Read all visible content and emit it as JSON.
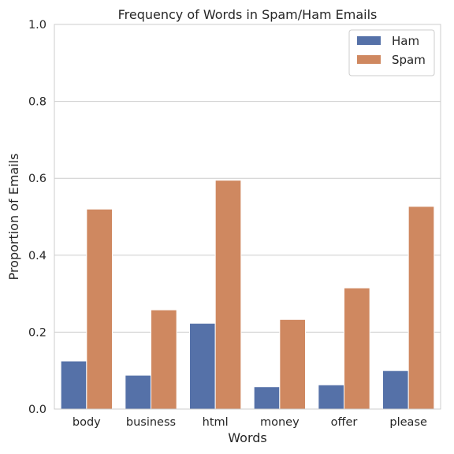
{
  "chart_data": {
    "type": "bar",
    "title": "Frequency of Words in Spam/Ham Emails",
    "xlabel": "Words",
    "ylabel": "Proportion of Emails",
    "categories": [
      "body",
      "business",
      "html",
      "money",
      "offer",
      "please"
    ],
    "series": [
      {
        "name": "Ham",
        "color": "#5571a8",
        "values": [
          0.125,
          0.088,
          0.223,
          0.058,
          0.063,
          0.1
        ]
      },
      {
        "name": "Spam",
        "color": "#cf8860",
        "values": [
          0.52,
          0.258,
          0.595,
          0.233,
          0.315,
          0.527
        ]
      }
    ],
    "ylim": [
      0,
      1.0
    ],
    "yticks": [
      "0.0",
      "0.2",
      "0.4",
      "0.6",
      "0.8",
      "1.0"
    ],
    "grid": true,
    "legend_position": "top-right"
  }
}
